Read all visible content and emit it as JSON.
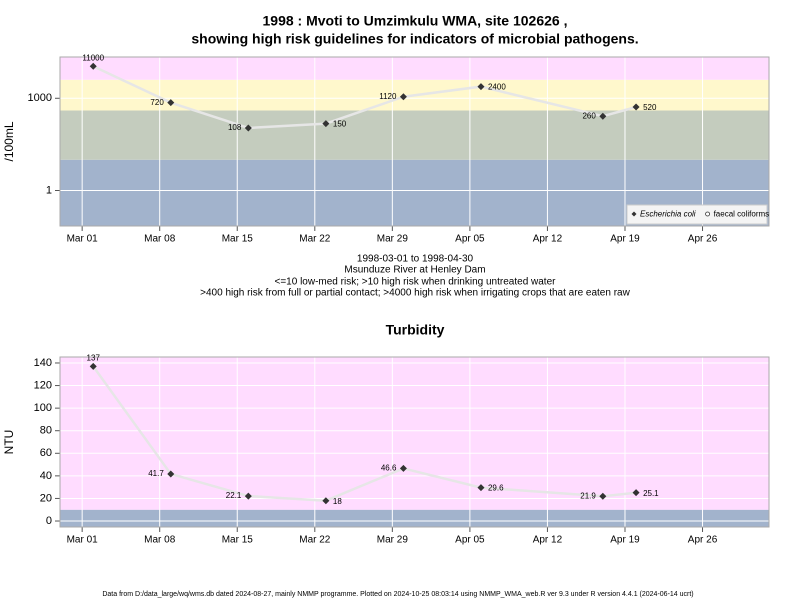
{
  "chart_data": [
    {
      "type": "line",
      "title": [
        "1998 : Mvoti to Umzimkulu WMA, site 102626 ,",
        "showing high risk guidelines for indicators of microbial pathogens."
      ],
      "y_label": "/100mL",
      "subtitle": [
        "1998-03-01 to 1998-04-30",
        "Msunduze River at Henley Dam",
        "<=10 low-med risk; >10 high risk when drinking untreated water",
        ">400 high risk from full or partial contact; >4000 high risk when irrigating crops that are eaten raw"
      ],
      "x": [
        "03-02",
        "03-09",
        "03-16",
        "03-23",
        "03-30",
        "04-06",
        "04-17",
        "04-20"
      ],
      "series": [
        {
          "name": "Escherichia coli",
          "color": "#333333",
          "line_color": "#e6e6e6",
          "marker": "diamond",
          "values": [
            11000,
            720,
            108,
            150,
            1120,
            2400,
            260,
            520
          ]
        },
        {
          "name": "faecal coliforms",
          "color": "#333333",
          "line_color": "#e6e6e6",
          "marker": "circle",
          "values": [
            null,
            null,
            null,
            null,
            null,
            null,
            null,
            null
          ]
        }
      ],
      "xlim": [
        "02-27",
        "05-02"
      ],
      "xticks": [
        {
          "value": "03-01",
          "label": "Mar 01"
        },
        {
          "value": "03-08",
          "label": "Mar 08"
        },
        {
          "value": "03-15",
          "label": "Mar 15"
        },
        {
          "value": "03-22",
          "label": "Mar 22"
        },
        {
          "value": "03-29",
          "label": "Mar 29"
        },
        {
          "value": "04-05",
          "label": "Apr 05"
        },
        {
          "value": "04-12",
          "label": "Apr 12"
        },
        {
          "value": "04-19",
          "label": "Apr 19"
        },
        {
          "value": "04-26",
          "label": "Apr 26"
        }
      ],
      "ylim": [
        0.07,
        22000
      ],
      "yticks": [
        1,
        1000
      ],
      "log_scale": true,
      "grid": true,
      "thresholds": [
        10,
        400,
        4000
      ],
      "band_colors": [
        "#a2b3cc",
        "#c4ccbe",
        "#fff8cc",
        "#ffdcff"
      ],
      "legend": "lower right"
    },
    {
      "type": "line",
      "title": "Turbidity",
      "y_label": "NTU",
      "x": [
        "03-02",
        "03-09",
        "03-16",
        "03-23",
        "03-30",
        "04-06",
        "04-17",
        "04-20"
      ],
      "values": [
        137,
        41.7,
        22.1,
        18,
        46.6,
        29.6,
        21.9,
        25.1
      ],
      "color": "#333333",
      "line_color": "#e6e6e6",
      "xlim": [
        "02-27",
        "05-02"
      ],
      "xticks": [
        {
          "value": "03-01",
          "label": "Mar 01"
        },
        {
          "value": "03-08",
          "label": "Mar 08"
        },
        {
          "value": "03-15",
          "label": "Mar 15"
        },
        {
          "value": "03-22",
          "label": "Mar 22"
        },
        {
          "value": "03-29",
          "label": "Mar 29"
        },
        {
          "value": "04-05",
          "label": "Apr 05"
        },
        {
          "value": "04-12",
          "label": "Apr 12"
        },
        {
          "value": "04-19",
          "label": "Apr 19"
        },
        {
          "value": "04-26",
          "label": "Apr 26"
        }
      ],
      "ylim": [
        -5.3,
        145.3
      ],
      "yticks": [
        0,
        20,
        40,
        60,
        80,
        100,
        120,
        140
      ],
      "log_scale": false,
      "grid": true,
      "thresholds": [
        10
      ],
      "band_colors": [
        "#a2b3cc",
        "#ffdcff"
      ]
    }
  ],
  "footer": "Data from D:/data_large/wq/wms.db dated 2024-08-27, mainly NMMP programme. Plotted on 2024-10-25 08:03:14 using NMMP_WMA_web.R ver 9.3 under R version 4.4.1 (2024-06-14 ucrt)"
}
